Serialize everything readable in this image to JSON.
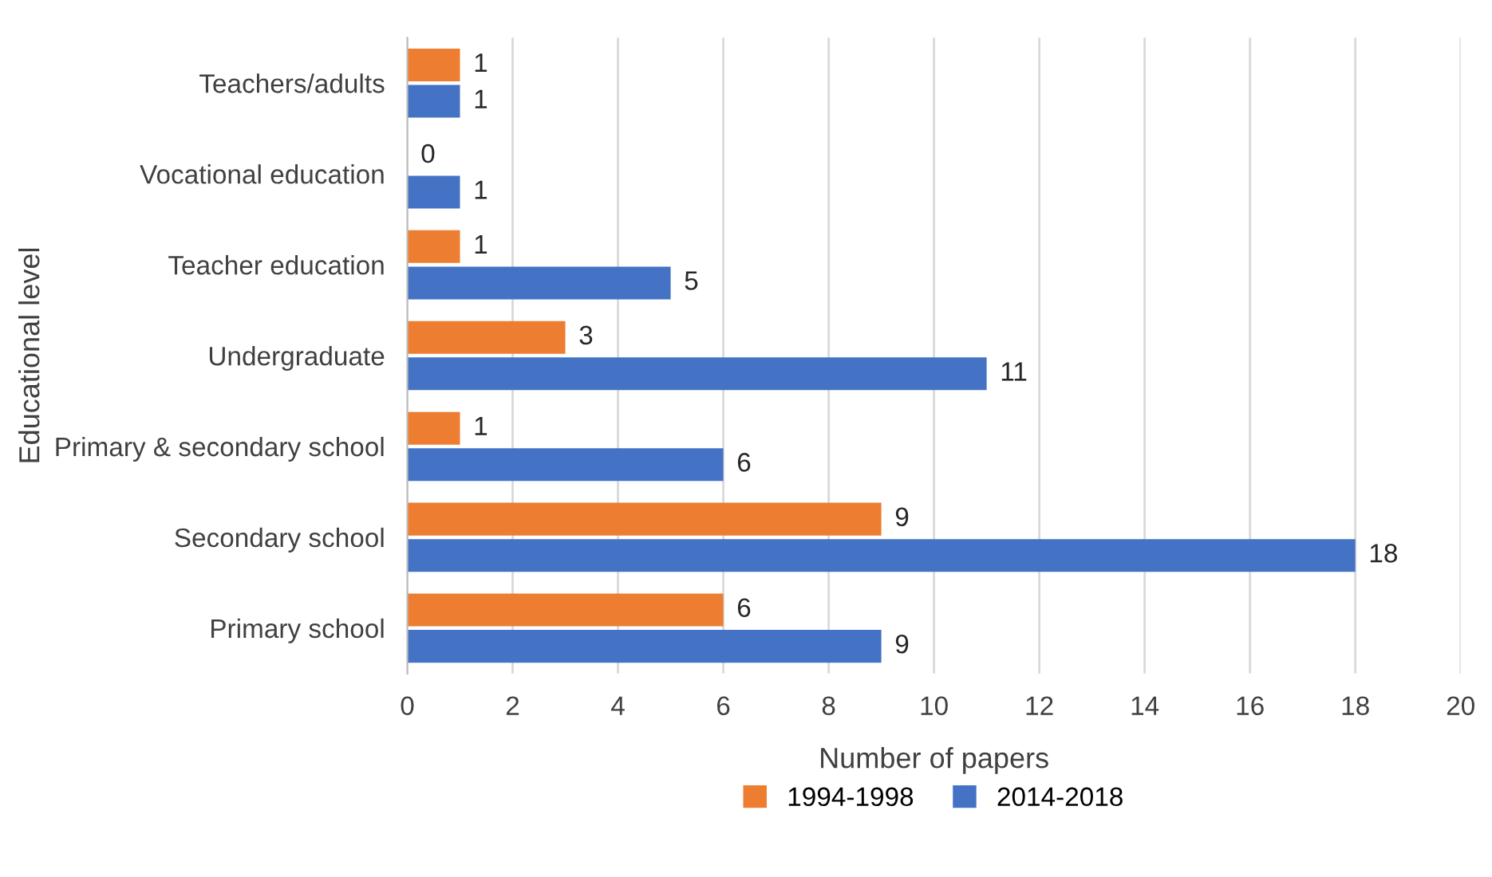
{
  "chart_data": {
    "type": "bar",
    "orientation": "horizontal",
    "xlabel": "Number of papers",
    "ylabel": "Educational level",
    "categories": [
      "Teachers/adults",
      "Vocational education",
      "Teacher education",
      "Undergraduate",
      "Primary & secondary school",
      "Secondary school",
      "Primary school"
    ],
    "series": [
      {
        "name": "1994-1998",
        "color": "#ed7d31",
        "values": [
          1,
          0,
          1,
          3,
          1,
          9,
          6
        ]
      },
      {
        "name": "2014-2018",
        "color": "#4472c4",
        "values": [
          1,
          1,
          5,
          11,
          6,
          18,
          9
        ]
      }
    ],
    "xlim": [
      0,
      20
    ],
    "xticks": [
      0,
      2,
      4,
      6,
      8,
      10,
      12,
      14,
      16,
      18,
      20
    ],
    "grid": "x",
    "legend": "bottom",
    "data_labels": true
  }
}
